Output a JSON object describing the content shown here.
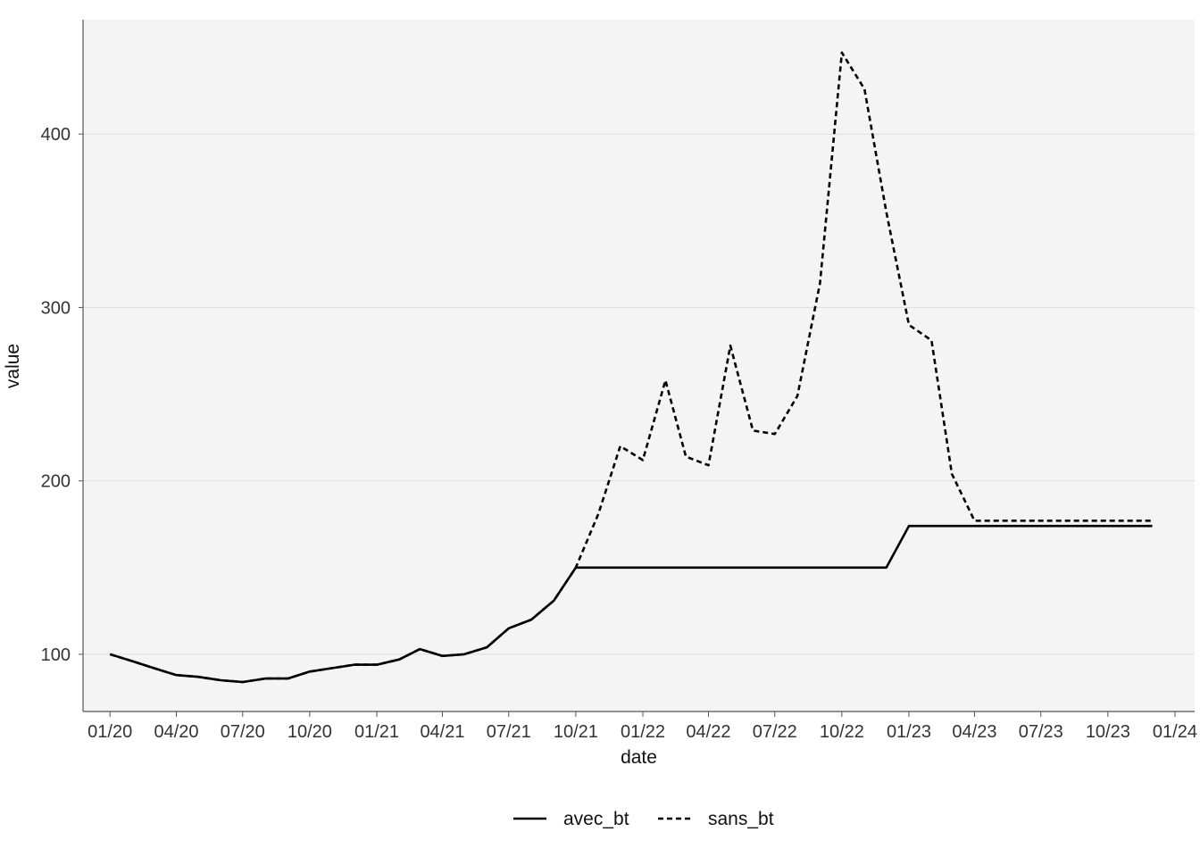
{
  "chart_data": {
    "type": "line",
    "title": "",
    "xlabel": "date",
    "ylabel": "value",
    "ylim": [
      67,
      466
    ],
    "xlim": [
      "2019-11-25",
      "2024-01-28"
    ],
    "y_ticks": [
      100,
      200,
      300,
      400
    ],
    "x_ticks": [
      {
        "date": "2020-01-01",
        "label": "01/20"
      },
      {
        "date": "2020-04-01",
        "label": "04/20"
      },
      {
        "date": "2020-07-01",
        "label": "07/20"
      },
      {
        "date": "2020-10-01",
        "label": "10/20"
      },
      {
        "date": "2021-01-01",
        "label": "01/21"
      },
      {
        "date": "2021-04-01",
        "label": "04/21"
      },
      {
        "date": "2021-07-01",
        "label": "07/21"
      },
      {
        "date": "2021-10-01",
        "label": "10/21"
      },
      {
        "date": "2022-01-01",
        "label": "01/22"
      },
      {
        "date": "2022-04-01",
        "label": "04/22"
      },
      {
        "date": "2022-07-01",
        "label": "07/22"
      },
      {
        "date": "2022-10-01",
        "label": "10/22"
      },
      {
        "date": "2023-01-01",
        "label": "01/23"
      },
      {
        "date": "2023-04-01",
        "label": "04/23"
      },
      {
        "date": "2023-07-01",
        "label": "07/23"
      },
      {
        "date": "2023-10-01",
        "label": "10/23"
      },
      {
        "date": "2024-01-01",
        "label": "01/24"
      }
    ],
    "grid": true,
    "legend_position": "bottom",
    "x": [
      "2020-01",
      "2020-02",
      "2020-03",
      "2020-04",
      "2020-05",
      "2020-06",
      "2020-07",
      "2020-08",
      "2020-09",
      "2020-10",
      "2020-11",
      "2020-12",
      "2021-01",
      "2021-02",
      "2021-03",
      "2021-04",
      "2021-05",
      "2021-06",
      "2021-07",
      "2021-08",
      "2021-09",
      "2021-10",
      "2021-11",
      "2021-12",
      "2022-01",
      "2022-02",
      "2022-03",
      "2022-04",
      "2022-05",
      "2022-06",
      "2022-07",
      "2022-08",
      "2022-09",
      "2022-10",
      "2022-11",
      "2022-12",
      "2023-01",
      "2023-02",
      "2023-03",
      "2023-04",
      "2023-05",
      "2023-06",
      "2023-07",
      "2023-08",
      "2023-09",
      "2023-10",
      "2023-11",
      "2023-12"
    ],
    "series": [
      {
        "name": "avec_bt",
        "line_style": "solid",
        "color": "#000000",
        "values": [
          100,
          96,
          92,
          88,
          87,
          85,
          84,
          86,
          86,
          90,
          92,
          94,
          94,
          97,
          103,
          99,
          100,
          104,
          115,
          120,
          131,
          150,
          150,
          150,
          150,
          150,
          150,
          150,
          150,
          150,
          150,
          150,
          150,
          150,
          150,
          150,
          174,
          174,
          174,
          174,
          174,
          174,
          174,
          174,
          174,
          174,
          174,
          174
        ]
      },
      {
        "name": "sans_bt",
        "line_style": "dashed",
        "color": "#000000",
        "values": [
          100,
          96,
          92,
          88,
          87,
          85,
          84,
          86,
          86,
          90,
          92,
          94,
          94,
          97,
          103,
          99,
          100,
          104,
          115,
          120,
          131,
          150,
          181,
          220,
          212,
          258,
          214,
          209,
          278,
          229,
          227,
          249,
          314,
          447,
          426,
          355,
          290,
          281,
          204,
          177,
          177,
          177,
          177,
          177,
          177,
          177,
          177,
          177
        ]
      }
    ]
  },
  "colors": {
    "panel_background": "#f4f4f4",
    "gridline": "#dcdcdc",
    "axis_line": "#555555",
    "line": "#000000"
  }
}
